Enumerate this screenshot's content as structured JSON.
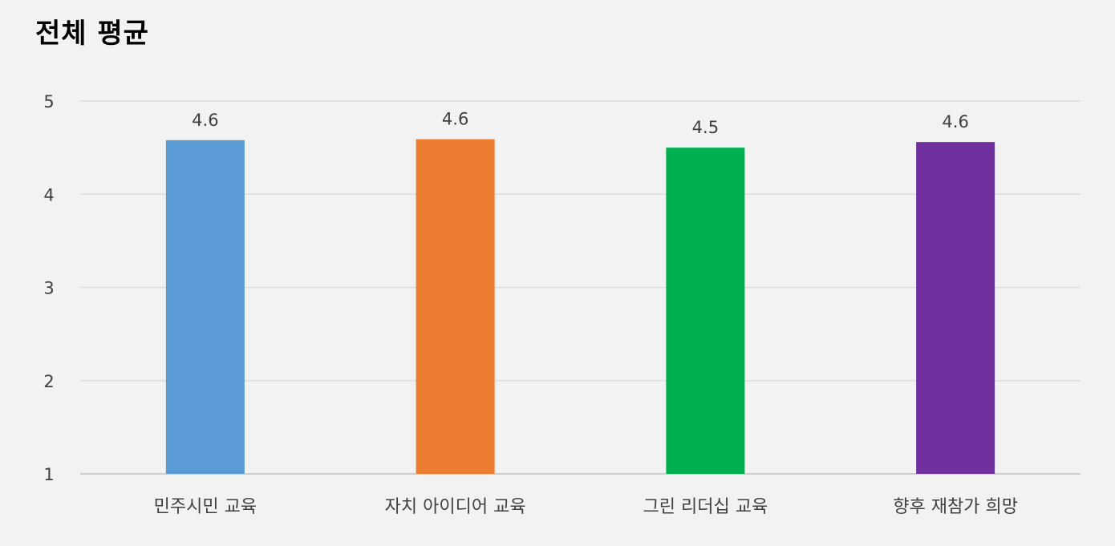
{
  "chart_data": {
    "type": "bar",
    "title": "전체 평균",
    "xlabel": "",
    "ylabel": "",
    "categories": [
      "민주시민 교육",
      "자치 아이디어 교육",
      "그린 리더십 교육",
      "향후 재참가 희망"
    ],
    "values": [
      4.58,
      4.59,
      4.5,
      4.56
    ],
    "data_labels": [
      "4.6",
      "4.6",
      "4.5",
      "4.6"
    ],
    "colors": [
      "#5b9bd5",
      "#ed7d31",
      "#00b050",
      "#7030a0"
    ],
    "ylim": [
      1,
      5
    ],
    "yticks": [
      "1",
      "2",
      "3",
      "4",
      "5"
    ],
    "grid": true,
    "legend": "none"
  }
}
